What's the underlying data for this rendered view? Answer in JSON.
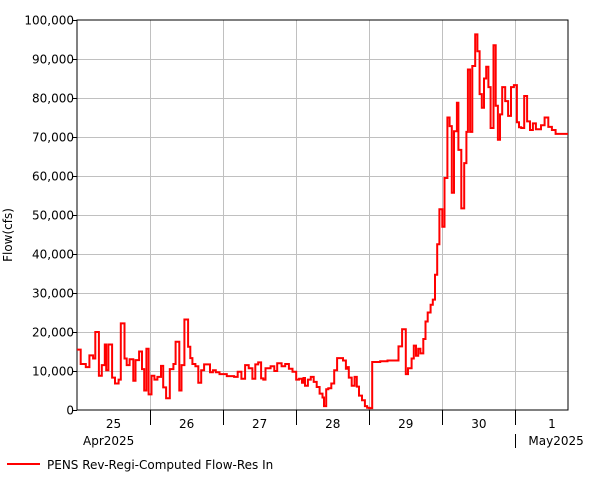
{
  "chart_data": {
    "type": "line",
    "ylabel": "Flow(cfs)",
    "ylim": [
      0,
      100000
    ],
    "yticks": [
      0,
      10000,
      20000,
      30000,
      40000,
      50000,
      60000,
      70000,
      80000,
      90000,
      100000
    ],
    "ytick_labels": [
      "0",
      "10,000",
      "20,000",
      "30,000",
      "40,000",
      "50,000",
      "60,000",
      "70,000",
      "80,000",
      "90,000",
      "100,000"
    ],
    "xlim": [
      0,
      6.72
    ],
    "x_unit_note": "days",
    "x_day_labels": [
      {
        "x": 0.5,
        "label": "25"
      },
      {
        "x": 1.5,
        "label": "26"
      },
      {
        "x": 2.5,
        "label": "27"
      },
      {
        "x": 3.5,
        "label": "28"
      },
      {
        "x": 4.5,
        "label": "29"
      },
      {
        "x": 5.5,
        "label": "30"
      },
      {
        "x": 6.5,
        "label": "1"
      }
    ],
    "x_day_boundaries": [
      1,
      2,
      3,
      4,
      5,
      6
    ],
    "x_month_labels": [
      {
        "x": 0,
        "label": "Apr2025"
      },
      {
        "x": 6,
        "label": "May2025"
      }
    ],
    "grid": true,
    "legend_position": "bottom-left",
    "series": [
      {
        "name": "PENS Rev-Regi-Computed Flow-Res In",
        "color": "#ff0000",
        "style": "step",
        "points": [
          [
            0.0,
            15500
          ],
          [
            0.05,
            11800
          ],
          [
            0.12,
            11000
          ],
          [
            0.17,
            14000
          ],
          [
            0.22,
            13200
          ],
          [
            0.25,
            20000
          ],
          [
            0.3,
            8800
          ],
          [
            0.34,
            11500
          ],
          [
            0.38,
            16800
          ],
          [
            0.4,
            10200
          ],
          [
            0.43,
            16800
          ],
          [
            0.48,
            8300
          ],
          [
            0.52,
            6800
          ],
          [
            0.57,
            7800
          ],
          [
            0.6,
            22200
          ],
          [
            0.65,
            13200
          ],
          [
            0.68,
            11500
          ],
          [
            0.72,
            13000
          ],
          [
            0.77,
            7500
          ],
          [
            0.8,
            12800
          ],
          [
            0.85,
            15000
          ],
          [
            0.89,
            10500
          ],
          [
            0.92,
            5000
          ],
          [
            0.95,
            15700
          ],
          [
            0.98,
            4000
          ],
          [
            1.02,
            8800
          ],
          [
            1.06,
            7800
          ],
          [
            1.1,
            8500
          ],
          [
            1.15,
            11300
          ],
          [
            1.18,
            5800
          ],
          [
            1.22,
            3000
          ],
          [
            1.27,
            10500
          ],
          [
            1.32,
            11800
          ],
          [
            1.35,
            17500
          ],
          [
            1.4,
            5000
          ],
          [
            1.43,
            11500
          ],
          [
            1.47,
            23200
          ],
          [
            1.52,
            16200
          ],
          [
            1.55,
            13300
          ],
          [
            1.58,
            11800
          ],
          [
            1.62,
            11200
          ],
          [
            1.66,
            7000
          ],
          [
            1.7,
            10200
          ],
          [
            1.74,
            11700
          ],
          [
            1.82,
            9700
          ],
          [
            1.86,
            10200
          ],
          [
            1.9,
            9700
          ],
          [
            1.95,
            9200
          ],
          [
            2.0,
            9200
          ],
          [
            2.05,
            8700
          ],
          [
            2.15,
            8500
          ],
          [
            2.2,
            9800
          ],
          [
            2.25,
            8000
          ],
          [
            2.3,
            11500
          ],
          [
            2.35,
            10700
          ],
          [
            2.4,
            8000
          ],
          [
            2.44,
            11700
          ],
          [
            2.48,
            12200
          ],
          [
            2.52,
            8100
          ],
          [
            2.55,
            7800
          ],
          [
            2.58,
            10700
          ],
          [
            2.65,
            11200
          ],
          [
            2.7,
            10000
          ],
          [
            2.74,
            12000
          ],
          [
            2.8,
            11200
          ],
          [
            2.85,
            11800
          ],
          [
            2.9,
            10600
          ],
          [
            2.95,
            9800
          ],
          [
            3.0,
            7800
          ],
          [
            3.04,
            8000
          ],
          [
            3.08,
            7000
          ],
          [
            3.1,
            8200
          ],
          [
            3.12,
            6200
          ],
          [
            3.16,
            7800
          ],
          [
            3.2,
            8500
          ],
          [
            3.24,
            7200
          ],
          [
            3.28,
            5900
          ],
          [
            3.32,
            4200
          ],
          [
            3.36,
            3200
          ],
          [
            3.38,
            1000
          ],
          [
            3.41,
            5300
          ],
          [
            3.44,
            5600
          ],
          [
            3.48,
            6800
          ],
          [
            3.52,
            10200
          ],
          [
            3.56,
            13300
          ],
          [
            3.64,
            12700
          ],
          [
            3.68,
            10600
          ],
          [
            3.7,
            11000
          ],
          [
            3.72,
            8300
          ],
          [
            3.76,
            6200
          ],
          [
            3.8,
            8500
          ],
          [
            3.83,
            6000
          ],
          [
            3.86,
            3700
          ],
          [
            3.9,
            2500
          ],
          [
            3.94,
            1000
          ],
          [
            3.97,
            600
          ],
          [
            4.0,
            500
          ],
          [
            4.04,
            12300
          ],
          [
            4.15,
            12500
          ],
          [
            4.25,
            12700
          ],
          [
            4.35,
            12700
          ],
          [
            4.4,
            16300
          ],
          [
            4.45,
            20700
          ],
          [
            4.5,
            9200
          ],
          [
            4.53,
            10700
          ],
          [
            4.58,
            13200
          ],
          [
            4.61,
            16500
          ],
          [
            4.64,
            13900
          ],
          [
            4.67,
            15700
          ],
          [
            4.7,
            14500
          ],
          [
            4.74,
            18200
          ],
          [
            4.77,
            22700
          ],
          [
            4.8,
            25000
          ],
          [
            4.84,
            27000
          ],
          [
            4.87,
            28300
          ],
          [
            4.9,
            34700
          ],
          [
            4.93,
            42500
          ],
          [
            4.96,
            51500
          ],
          [
            5.0,
            47000
          ],
          [
            5.03,
            59500
          ],
          [
            5.07,
            75000
          ],
          [
            5.1,
            72800
          ],
          [
            5.13,
            55700
          ],
          [
            5.16,
            71500
          ],
          [
            5.2,
            78800
          ],
          [
            5.22,
            66700
          ],
          [
            5.26,
            51700
          ],
          [
            5.3,
            63300
          ],
          [
            5.33,
            71300
          ],
          [
            5.35,
            87300
          ],
          [
            5.38,
            71300
          ],
          [
            5.41,
            88200
          ],
          [
            5.45,
            96300
          ],
          [
            5.48,
            92000
          ],
          [
            5.51,
            81000
          ],
          [
            5.54,
            77500
          ],
          [
            5.57,
            85000
          ],
          [
            5.6,
            88000
          ],
          [
            5.63,
            82800
          ],
          [
            5.66,
            72300
          ],
          [
            5.7,
            93500
          ],
          [
            5.73,
            78000
          ],
          [
            5.76,
            69300
          ],
          [
            5.79,
            75800
          ],
          [
            5.82,
            82800
          ],
          [
            5.86,
            79200
          ],
          [
            5.9,
            75400
          ],
          [
            5.94,
            82800
          ],
          [
            5.98,
            83300
          ],
          [
            6.02,
            73800
          ],
          [
            6.05,
            72500
          ],
          [
            6.08,
            72300
          ],
          [
            6.12,
            80500
          ],
          [
            6.16,
            74000
          ],
          [
            6.2,
            71800
          ],
          [
            6.24,
            73500
          ],
          [
            6.28,
            72000
          ],
          [
            6.35,
            73000
          ],
          [
            6.4,
            75000
          ],
          [
            6.45,
            72600
          ],
          [
            6.5,
            71800
          ],
          [
            6.55,
            70800
          ],
          [
            6.72,
            70800
          ]
        ]
      }
    ]
  },
  "legend": {
    "label": "PENS Rev-Regi-Computed Flow-Res In",
    "color": "#ff0000"
  }
}
